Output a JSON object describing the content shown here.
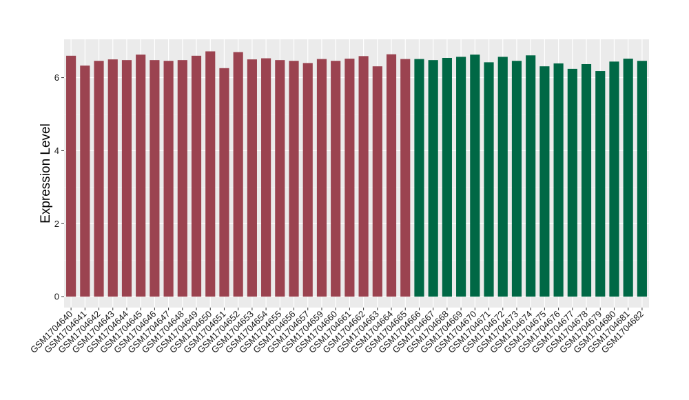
{
  "chart_data": {
    "type": "bar",
    "ylabel": "Expression Level",
    "xlabel": "",
    "ylim": [
      -0.3,
      7.05
    ],
    "yticks": [
      0,
      2,
      4,
      6
    ],
    "grid": true,
    "background": "#ebebeb",
    "group_colors": [
      "#9b4350",
      "#006845"
    ],
    "categories": [
      "GSM1704640",
      "GSM1704641",
      "GSM1704642",
      "GSM1704643",
      "GSM1704644",
      "GSM1704645",
      "GSM1704646",
      "GSM1704647",
      "GSM1704648",
      "GSM1704649",
      "GSM1704650",
      "GSM1704651",
      "GSM1704652",
      "GSM1704653",
      "GSM1704654",
      "GSM1704655",
      "GSM1704656",
      "GSM1704657",
      "GSM1704659",
      "GSM1704660",
      "GSM1704661",
      "GSM1704662",
      "GSM1704663",
      "GSM1704664",
      "GSM1704665",
      "GSM1704666",
      "GSM1704667",
      "GSM1704668",
      "GSM1704669",
      "GSM1704670",
      "GSM1704671",
      "GSM1704672",
      "GSM1704673",
      "GSM1704674",
      "GSM1704675",
      "GSM1704676",
      "GSM1704677",
      "GSM1704678",
      "GSM1704679",
      "GSM1704680",
      "GSM1704681",
      "GSM1704682"
    ],
    "values": [
      6.6,
      6.33,
      6.46,
      6.5,
      6.48,
      6.63,
      6.48,
      6.46,
      6.48,
      6.6,
      6.72,
      6.26,
      6.7,
      6.5,
      6.53,
      6.48,
      6.46,
      6.4,
      6.51,
      6.46,
      6.52,
      6.59,
      6.31,
      6.64,
      6.51,
      6.51,
      6.48,
      6.54,
      6.57,
      6.63,
      6.42,
      6.57,
      6.46,
      6.61,
      6.31,
      6.39,
      6.24,
      6.37,
      6.18,
      6.44,
      6.52,
      6.46
    ],
    "groups": [
      0,
      0,
      0,
      0,
      0,
      0,
      0,
      0,
      0,
      0,
      0,
      0,
      0,
      0,
      0,
      0,
      0,
      0,
      0,
      0,
      0,
      0,
      0,
      0,
      0,
      1,
      1,
      1,
      1,
      1,
      1,
      1,
      1,
      1,
      1,
      1,
      1,
      1,
      1,
      1,
      1,
      1
    ]
  }
}
